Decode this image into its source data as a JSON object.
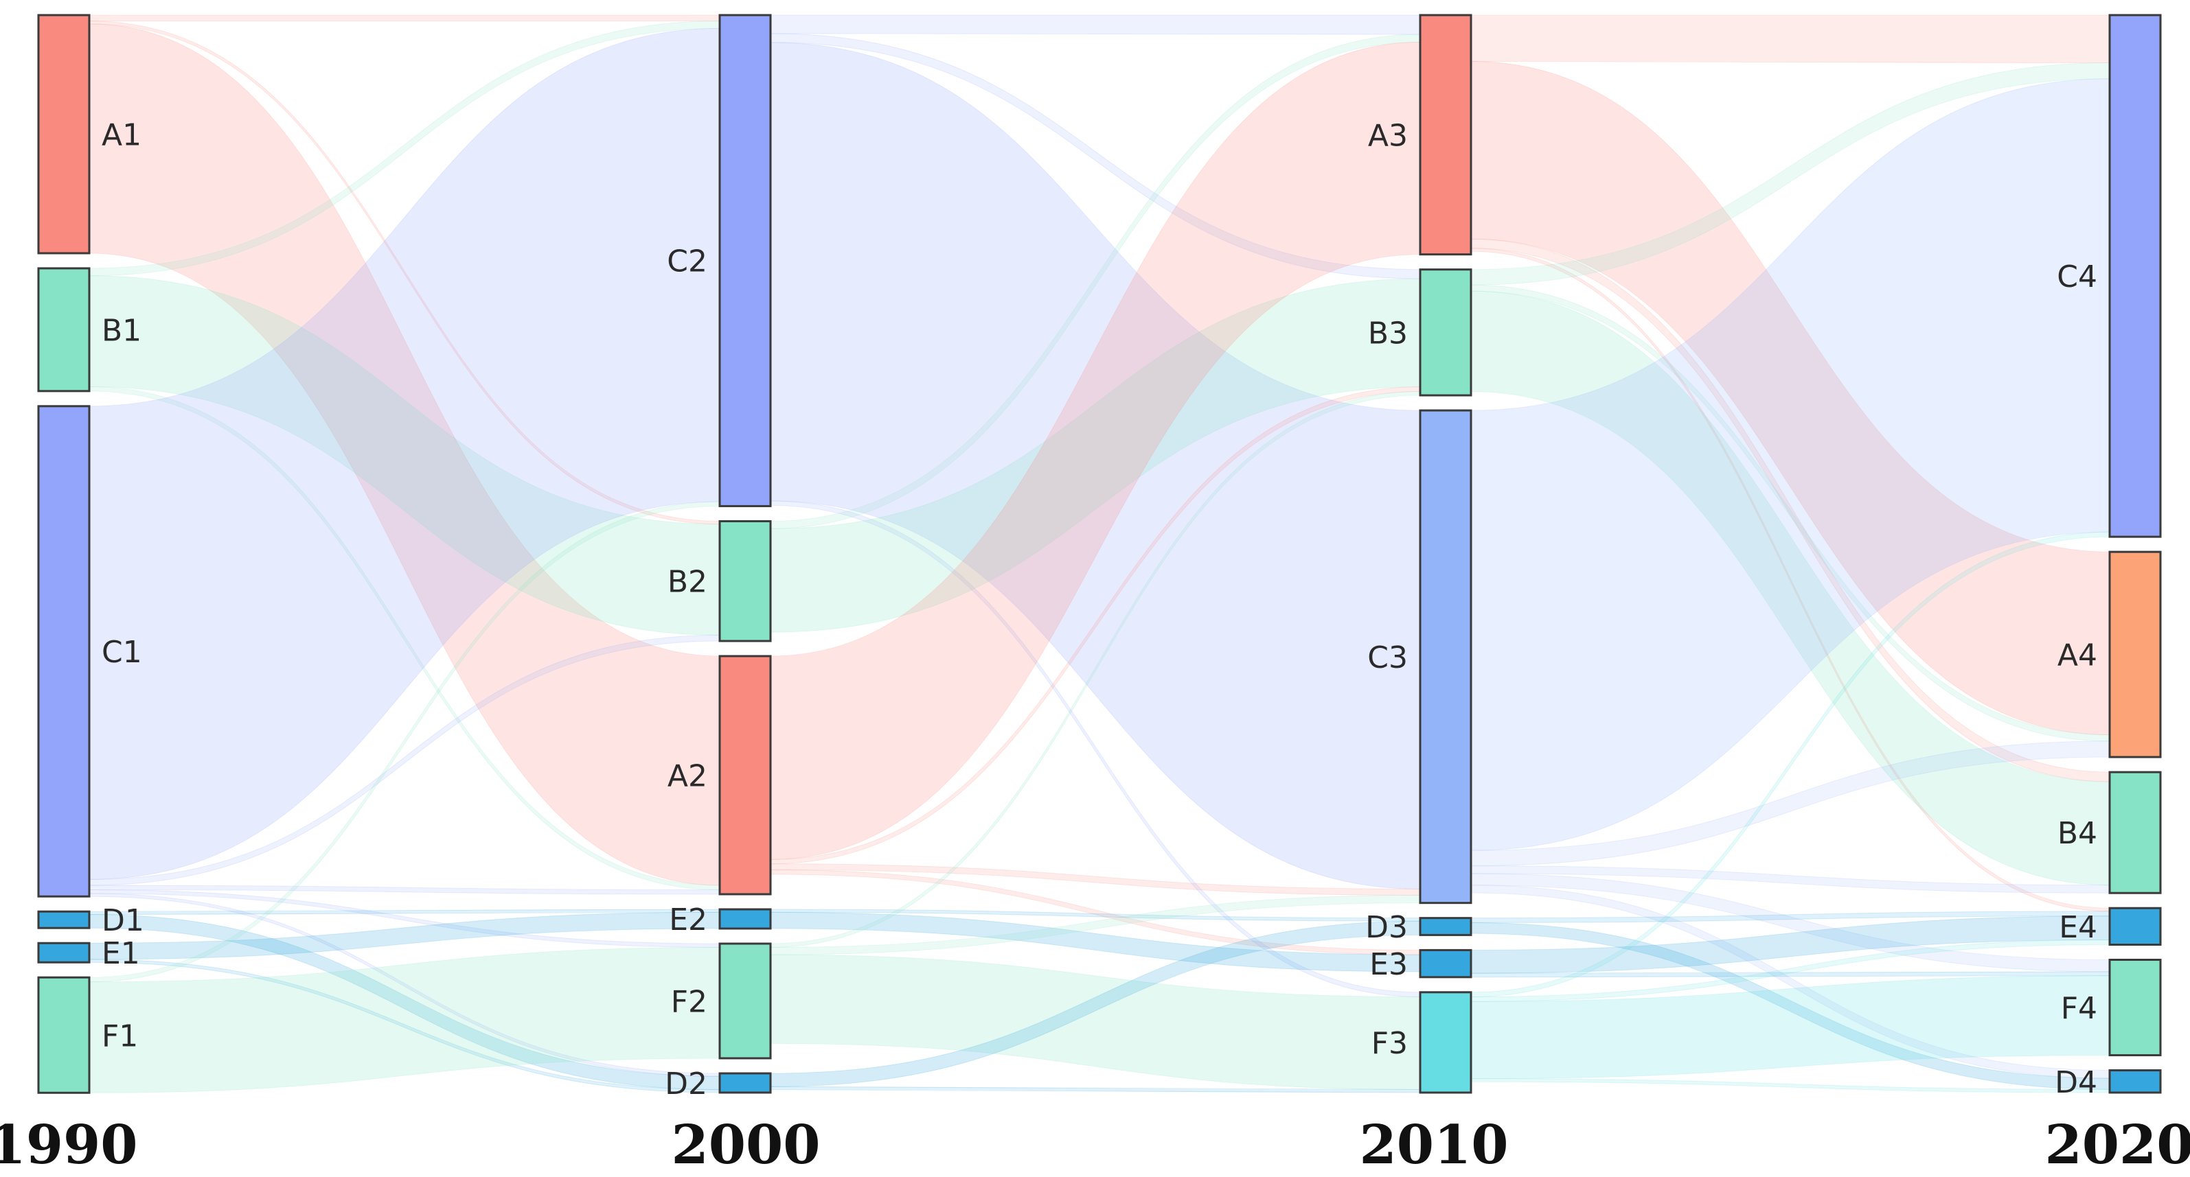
{
  "years": [
    "1990",
    "2000",
    "2010",
    "2020"
  ],
  "colors": {
    "A": "#f98a80",
    "A4": "#fca477",
    "B": "#86e3c6",
    "C": "#93a5fb",
    "C3": "#94b4fa",
    "D": "#36a7de",
    "E": "#36a7de",
    "F": "#86e3c6",
    "F3": "#66dde2"
  },
  "columns": [
    {
      "year": "1990",
      "nodes": [
        "A1",
        "B1",
        "C1",
        "D1",
        "E1",
        "F1"
      ]
    },
    {
      "year": "2000",
      "nodes": [
        "C2",
        "B2",
        "A2",
        "E2",
        "F2",
        "D2"
      ]
    },
    {
      "year": "2010",
      "nodes": [
        "A3",
        "B3",
        "C3",
        "D3",
        "E3",
        "F3"
      ]
    },
    {
      "year": "2020",
      "nodes": [
        "C4",
        "A4",
        "B4",
        "E4",
        "F4",
        "D4"
      ]
    }
  ],
  "flows": [
    {
      "from": "A1",
      "to": "A2",
      "value": 310
    },
    {
      "from": "A1",
      "to": "C2",
      "value": 8
    },
    {
      "from": "A1",
      "to": "B2",
      "value": 4
    },
    {
      "from": "B1",
      "to": "B2",
      "value": 150
    },
    {
      "from": "B1",
      "to": "C2",
      "value": 10
    },
    {
      "from": "B1",
      "to": "A2",
      "value": 6
    },
    {
      "from": "C1",
      "to": "C2",
      "value": 640
    },
    {
      "from": "C1",
      "to": "B2",
      "value": 8
    },
    {
      "from": "C1",
      "to": "A2",
      "value": 6
    },
    {
      "from": "C1",
      "to": "F2",
      "value": 5
    },
    {
      "from": "C1",
      "to": "D2",
      "value": 4
    },
    {
      "from": "D1",
      "to": "D2",
      "value": 18
    },
    {
      "from": "D1",
      "to": "E2",
      "value": 4
    },
    {
      "from": "E1",
      "to": "E2",
      "value": 22
    },
    {
      "from": "E1",
      "to": "D2",
      "value": 4
    },
    {
      "from": "F1",
      "to": "F2",
      "value": 150
    },
    {
      "from": "F1",
      "to": "C2",
      "value": 6
    },
    {
      "from": "C2",
      "to": "C3",
      "value": 620
    },
    {
      "from": "C2",
      "to": "A3",
      "value": 25
    },
    {
      "from": "C2",
      "to": "B3",
      "value": 12
    },
    {
      "from": "C2",
      "to": "F3",
      "value": 6
    },
    {
      "from": "B2",
      "to": "B3",
      "value": 140
    },
    {
      "from": "B2",
      "to": "A3",
      "value": 10
    },
    {
      "from": "A2",
      "to": "A3",
      "value": 275
    },
    {
      "from": "A2",
      "to": "B3",
      "value": 6
    },
    {
      "from": "A2",
      "to": "C3",
      "value": 8
    },
    {
      "from": "A2",
      "to": "E3",
      "value": 6
    },
    {
      "from": "E2",
      "to": "E3",
      "value": 22
    },
    {
      "from": "E2",
      "to": "D3",
      "value": 4
    },
    {
      "from": "F2",
      "to": "F3",
      "value": 120
    },
    {
      "from": "F2",
      "to": "B3",
      "value": 5
    },
    {
      "from": "F2",
      "to": "C3",
      "value": 10
    },
    {
      "from": "D2",
      "to": "D3",
      "value": 18
    },
    {
      "from": "D2",
      "to": "F3",
      "value": 4
    },
    {
      "from": "A3",
      "to": "A4",
      "value": 230
    },
    {
      "from": "A3",
      "to": "C4",
      "value": 60
    },
    {
      "from": "A3",
      "to": "B4",
      "value": 12
    },
    {
      "from": "A3",
      "to": "E4",
      "value": 4
    },
    {
      "from": "B3",
      "to": "B4",
      "value": 130
    },
    {
      "from": "B3",
      "to": "C4",
      "value": 20
    },
    {
      "from": "B3",
      "to": "A4",
      "value": 8
    },
    {
      "from": "C3",
      "to": "C4",
      "value": 570
    },
    {
      "from": "C3",
      "to": "A4",
      "value": 20
    },
    {
      "from": "C3",
      "to": "B4",
      "value": 10
    },
    {
      "from": "C3",
      "to": "F4",
      "value": 15
    },
    {
      "from": "C3",
      "to": "D4",
      "value": 10
    },
    {
      "from": "D3",
      "to": "D4",
      "value": 14
    },
    {
      "from": "D3",
      "to": "E4",
      "value": 6
    },
    {
      "from": "E3",
      "to": "E4",
      "value": 30
    },
    {
      "from": "E3",
      "to": "F4",
      "value": 5
    },
    {
      "from": "F3",
      "to": "F4",
      "value": 100
    },
    {
      "from": "F3",
      "to": "E4",
      "value": 6
    },
    {
      "from": "F3",
      "to": "D4",
      "value": 4
    },
    {
      "from": "F3",
      "to": "C4",
      "value": 6
    }
  ]
}
